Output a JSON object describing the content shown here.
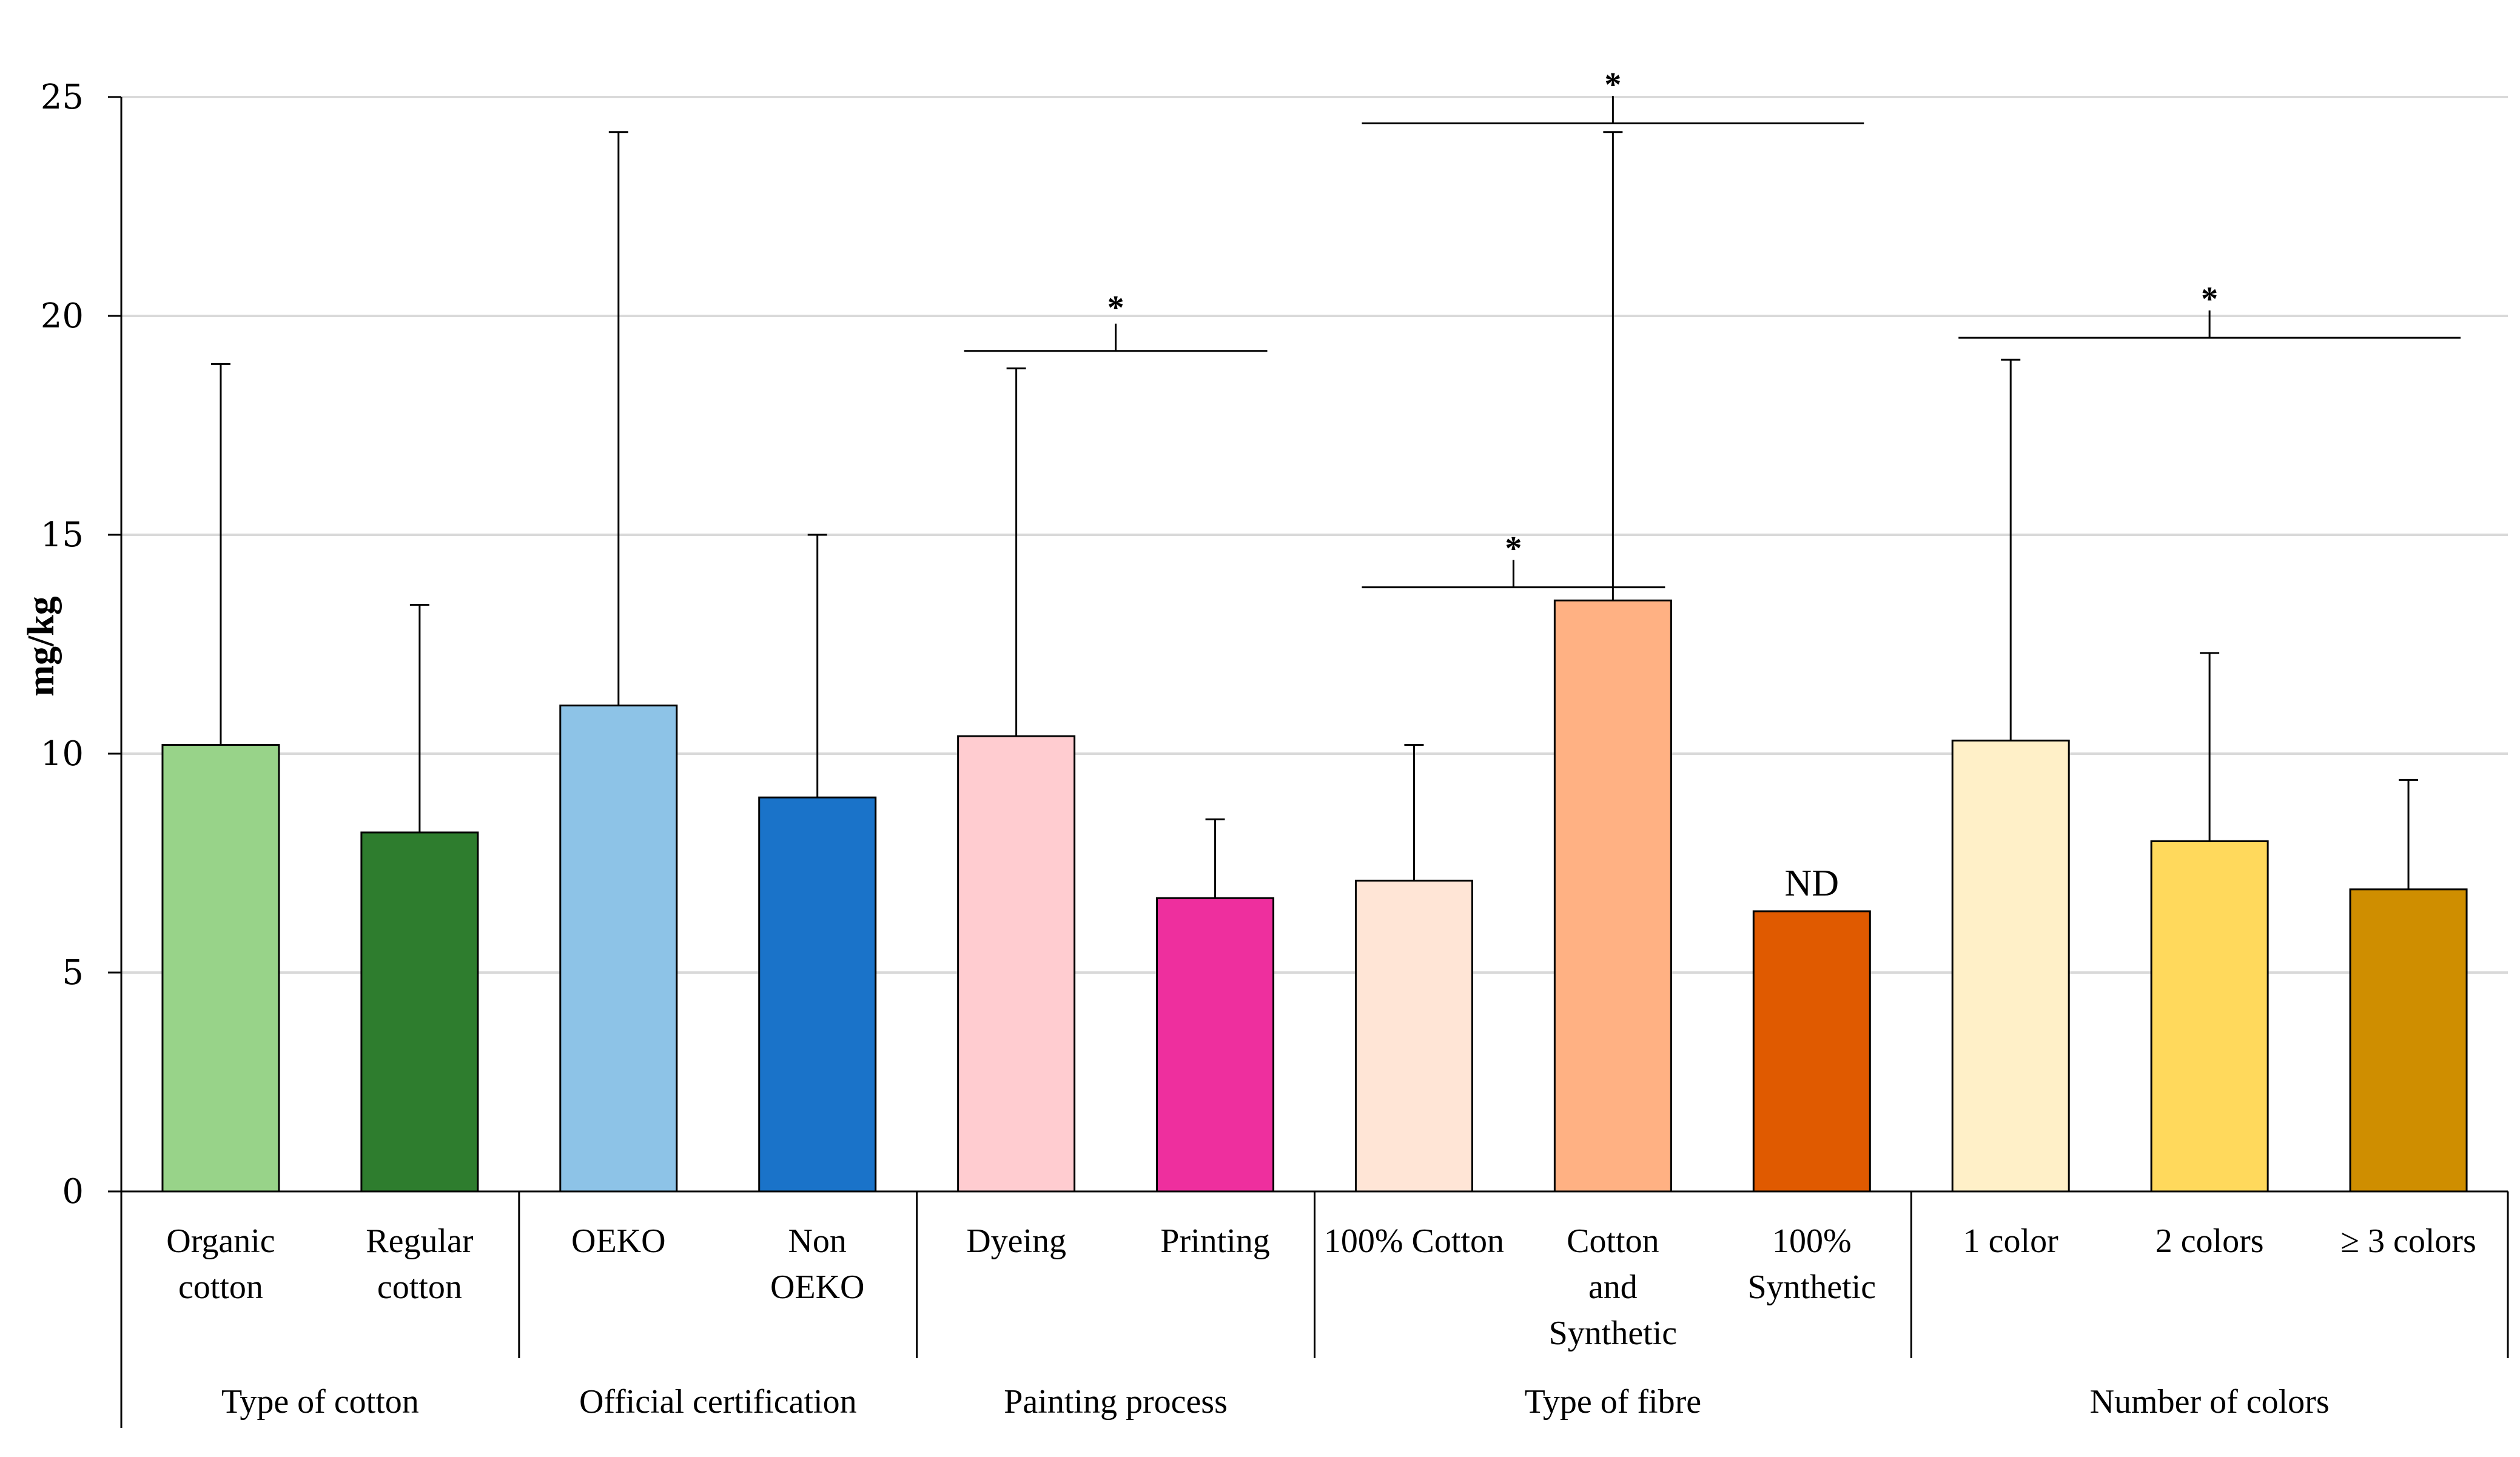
{
  "chart_data": {
    "type": "bar",
    "title": "",
    "xlabel": "",
    "ylabel": "mg/kg",
    "ylim": [
      0,
      25
    ],
    "yticks": [
      0,
      5,
      10,
      15,
      20,
      25
    ],
    "grid": true,
    "groups": [
      {
        "name": "Type of cotton",
        "bars": [
          {
            "label": [
              "Organic",
              "cotton"
            ],
            "value": 10.2,
            "error": 18.9,
            "color": "#98d389"
          },
          {
            "label": [
              "Regular",
              "cotton"
            ],
            "value": 8.2,
            "error": 13.4,
            "color": "#2e7d2e"
          }
        ]
      },
      {
        "name": "Official certification",
        "bars": [
          {
            "label": [
              "OEKO"
            ],
            "value": 11.1,
            "error": 24.2,
            "color": "#8dc3e7"
          },
          {
            "label": [
              "Non",
              "OEKO"
            ],
            "value": 9.0,
            "error": 15.0,
            "color": "#1a73c9"
          }
        ]
      },
      {
        "name": "Painting process",
        "bars": [
          {
            "label": [
              "Dyeing"
            ],
            "value": 10.4,
            "error": 18.8,
            "color": "#ffccd0"
          },
          {
            "label": [
              "Printing"
            ],
            "value": 6.7,
            "error": 8.5,
            "color": "#ee2f9e"
          }
        ]
      },
      {
        "name": "Type of fibre",
        "bars": [
          {
            "label": [
              "100% Cotton"
            ],
            "value": 7.1,
            "error": 10.2,
            "color": "#ffe5d6"
          },
          {
            "label": [
              "Cotton",
              "and",
              "Synthetic"
            ],
            "value": 13.5,
            "error": 24.2,
            "color": "#ffb183"
          },
          {
            "label": [
              "100%",
              "Synthetic"
            ],
            "value": 6.4,
            "error": null,
            "color": "#e05a00",
            "note": "ND"
          }
        ]
      },
      {
        "name": "Number of colors",
        "bars": [
          {
            "label": [
              "1 color"
            ],
            "value": 10.3,
            "error": 19.0,
            "color": "#fff0c8"
          },
          {
            "label": [
              "2 colors"
            ],
            "value": 8.0,
            "error": 12.3,
            "color": "#ffd95c"
          },
          {
            "label": [
              "≥ 3 colors"
            ],
            "value": 6.9,
            "error": 9.4,
            "color": "#cf8e00"
          }
        ]
      }
    ],
    "significance": [
      {
        "from_bar": 4,
        "to_bar": 5,
        "y": 19.2,
        "star_y": 20.0,
        "marker": "*"
      },
      {
        "from_bar": 6,
        "to_bar": 7,
        "y": 13.8,
        "star_y": 14.5,
        "marker": "*"
      },
      {
        "from_bar": 6,
        "to_bar": 8,
        "y": 24.4,
        "star_y": 25.1,
        "marker": "*"
      },
      {
        "from_bar": 9,
        "to_bar": 11,
        "y": 19.5,
        "star_y": 20.2,
        "marker": "*"
      }
    ]
  }
}
